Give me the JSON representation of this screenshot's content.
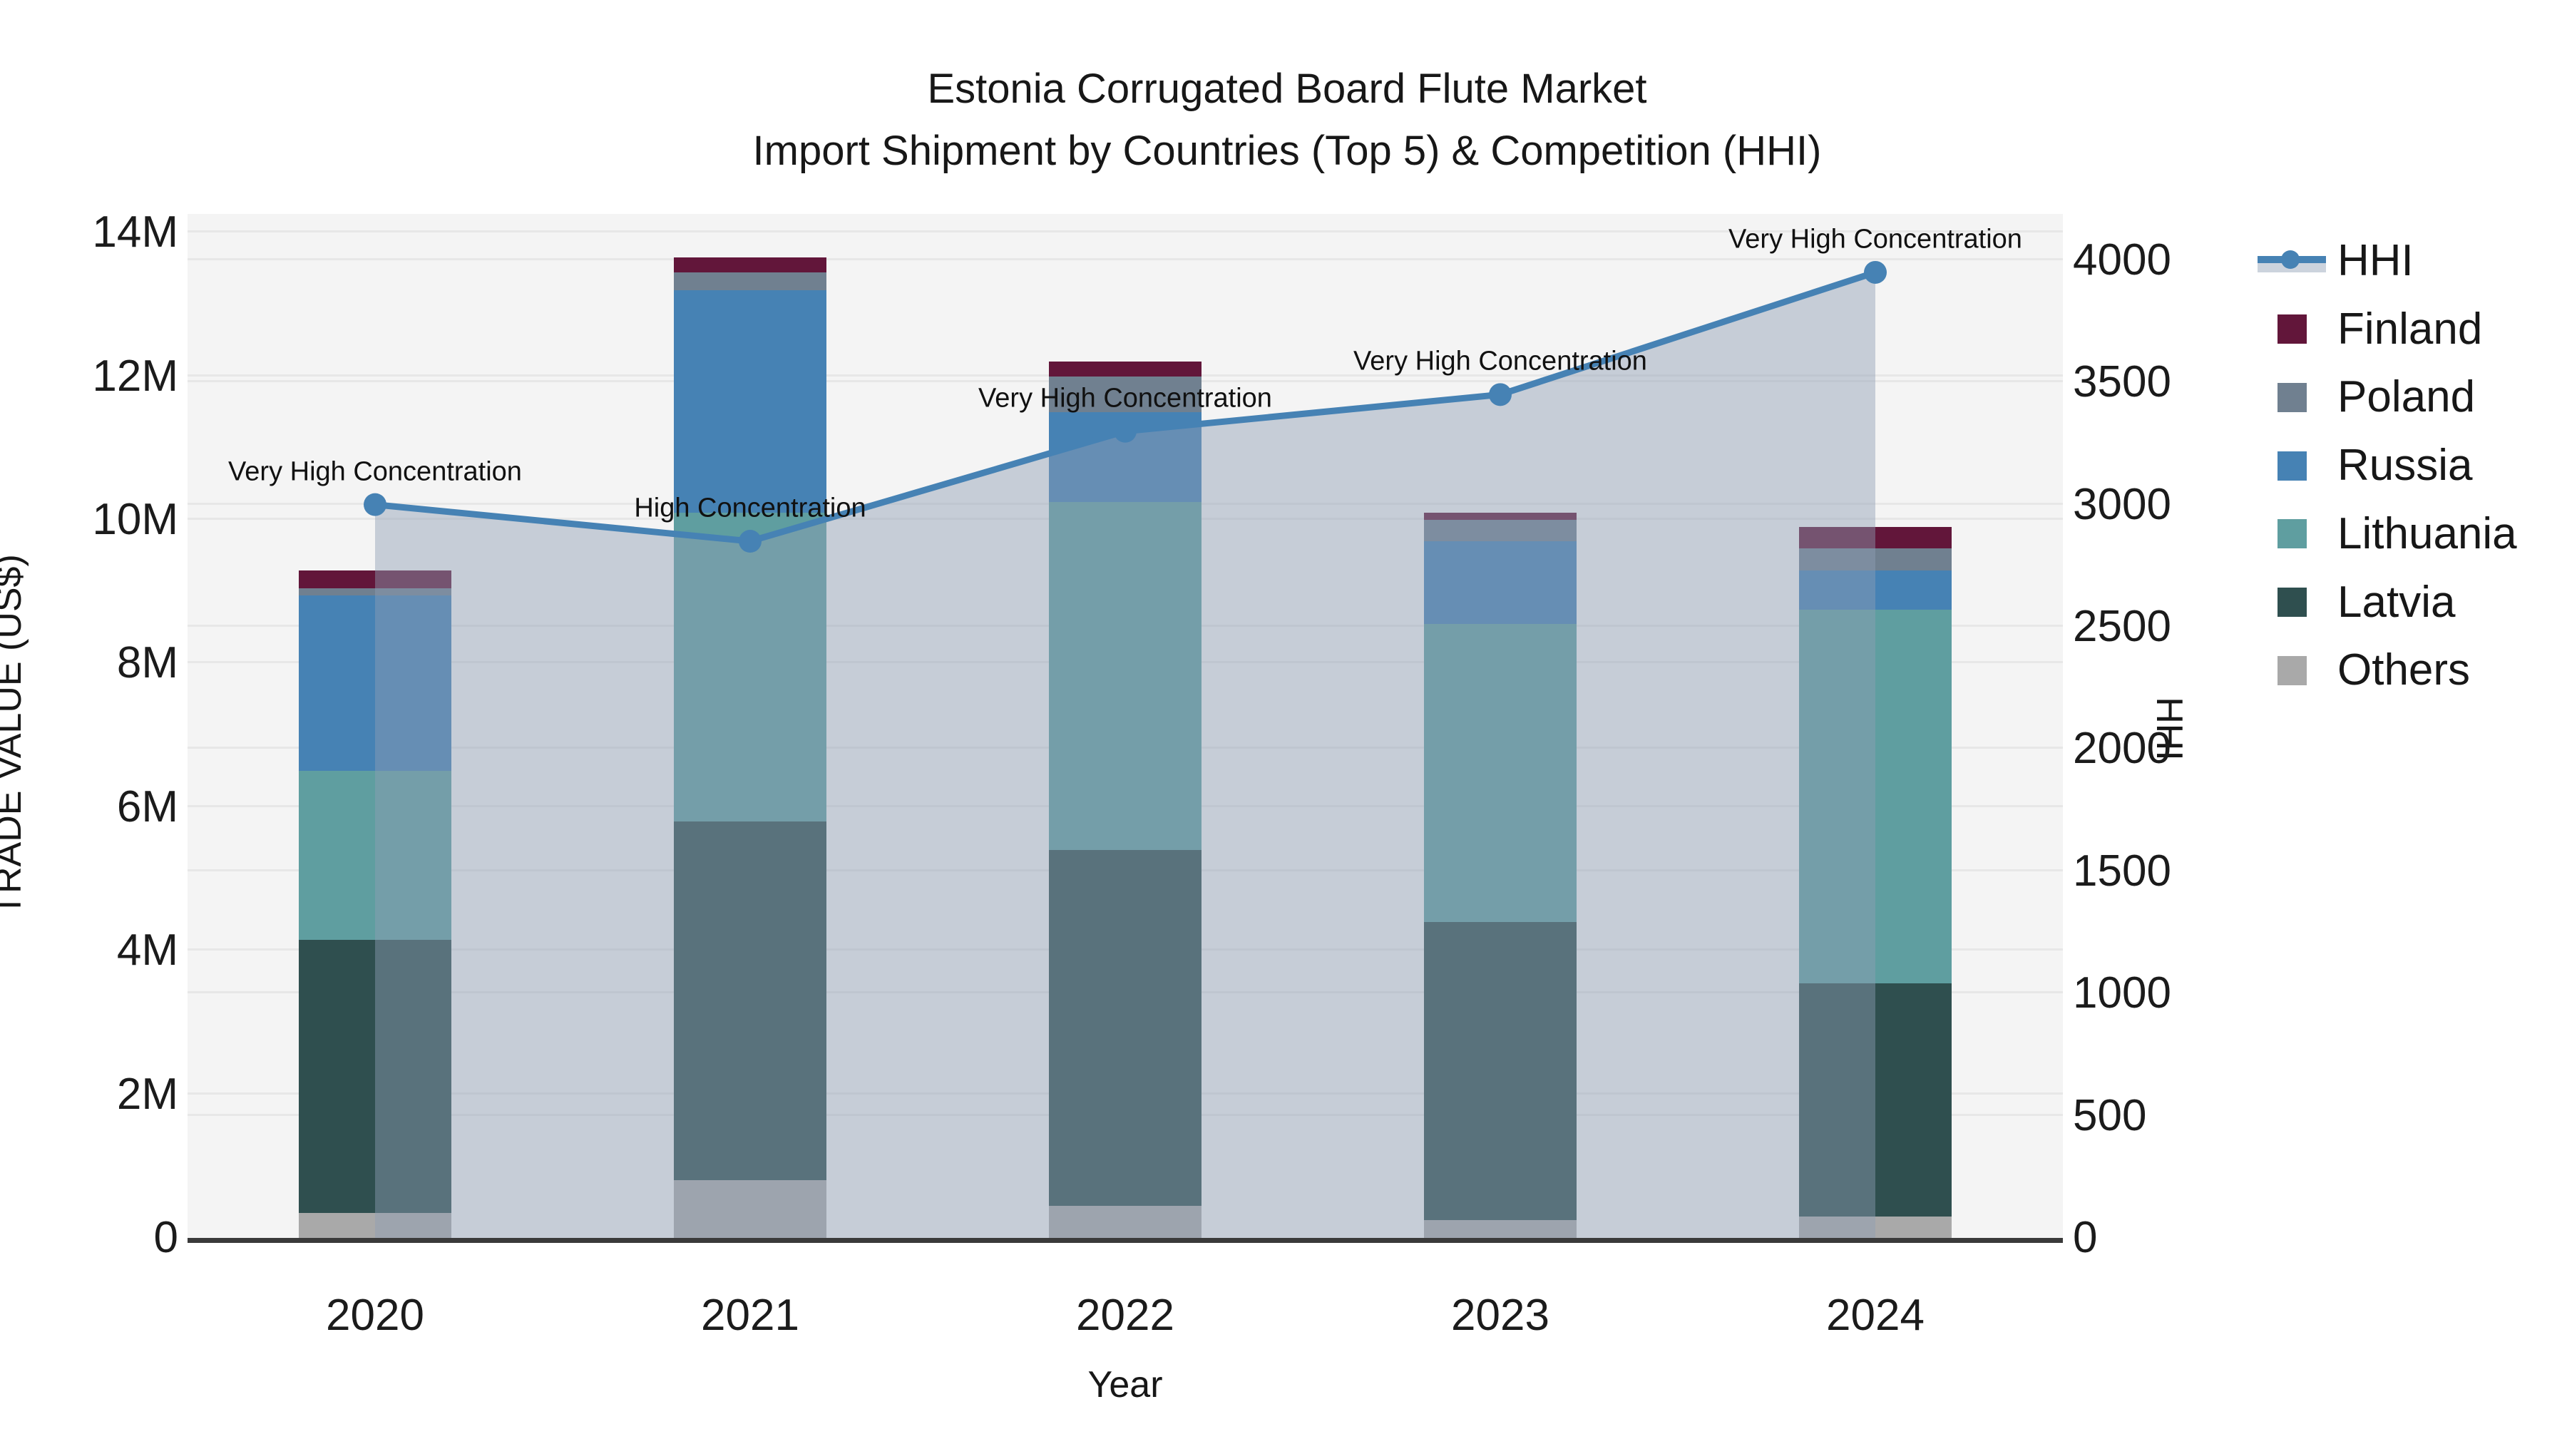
{
  "title": {
    "line1": "Estonia Corrugated Board Flute Market",
    "line2": "Import Shipment by Countries (Top 5) & Competition (HHI)"
  },
  "axes": {
    "x_label": "Year",
    "y_left_label": "TRADE VALUE (US$)",
    "y_right_label": "HHI",
    "y_left_ticks": [
      {
        "value": 0,
        "label": "0"
      },
      {
        "value": 2,
        "label": "2M"
      },
      {
        "value": 4,
        "label": "4M"
      },
      {
        "value": 6,
        "label": "6M"
      },
      {
        "value": 8,
        "label": "8M"
      },
      {
        "value": 10,
        "label": "10M"
      },
      {
        "value": 12,
        "label": "12M"
      },
      {
        "value": 14,
        "label": "14M"
      }
    ],
    "y_right_ticks": [
      {
        "value": 0,
        "label": "0"
      },
      {
        "value": 500,
        "label": "500"
      },
      {
        "value": 1000,
        "label": "1000"
      },
      {
        "value": 1500,
        "label": "1500"
      },
      {
        "value": 2000,
        "label": "2000"
      },
      {
        "value": 2500,
        "label": "2500"
      },
      {
        "value": 3000,
        "label": "3000"
      },
      {
        "value": 3500,
        "label": "3500"
      },
      {
        "value": 4000,
        "label": "4000"
      }
    ]
  },
  "chart_data": {
    "type": "bar",
    "subtype": "stacked-bars-with-line",
    "categories": [
      "2020",
      "2021",
      "2022",
      "2023",
      "2024"
    ],
    "xlabel": "Year",
    "ylabel_left": "TRADE VALUE (US$)",
    "ylabel_right": "HHI",
    "ylim_left_millions": [
      0,
      14.25
    ],
    "ylim_right": [
      0,
      4190
    ],
    "grid": true,
    "values_unit": "millions USD",
    "series": [
      {
        "name": "Others",
        "color": "#a9a9a9",
        "values": [
          0.35,
          0.8,
          0.45,
          0.25,
          0.3
        ]
      },
      {
        "name": "Latvia",
        "color": "#2f4f4f",
        "values": [
          3.8,
          5.0,
          4.95,
          4.15,
          3.25
        ]
      },
      {
        "name": "Lithuania",
        "color": "#5f9ea0",
        "values": [
          2.35,
          4.3,
          4.85,
          4.15,
          5.2
        ]
      },
      {
        "name": "Russia",
        "color": "#4682b4",
        "values": [
          2.45,
          3.1,
          1.25,
          1.15,
          0.55
        ]
      },
      {
        "name": "Poland",
        "color": "#708090",
        "values": [
          0.1,
          0.25,
          0.5,
          0.3,
          0.3
        ]
      },
      {
        "name": "Finland",
        "color": "#62163a",
        "values": [
          0.25,
          0.2,
          0.2,
          0.1,
          0.3
        ]
      }
    ],
    "line_series": {
      "name": "HHI",
      "color": "#4682b4",
      "area_fill": "rgba(143,158,180,0.45)",
      "values": [
        3000,
        2850,
        3300,
        3450,
        3950
      ]
    },
    "annotations": [
      {
        "category": "2020",
        "text": "Very High Concentration"
      },
      {
        "category": "2021",
        "text": "High Concentration"
      },
      {
        "category": "2022",
        "text": "Very High Concentration"
      },
      {
        "category": "2023",
        "text": "Very High Concentration"
      },
      {
        "category": "2024",
        "text": "Very High Concentration"
      }
    ],
    "legend_position": "right",
    "legend_order": [
      "HHI",
      "Finland",
      "Poland",
      "Russia",
      "Lithuania",
      "Latvia",
      "Others"
    ]
  },
  "colors": {
    "plot_bg": "#f4f4f4",
    "gridline": "#e7e7e7",
    "spine": "#3a3a3a",
    "hhi_line": "#4682b4",
    "hhi_area": "rgba(143,158,180,0.45)"
  }
}
